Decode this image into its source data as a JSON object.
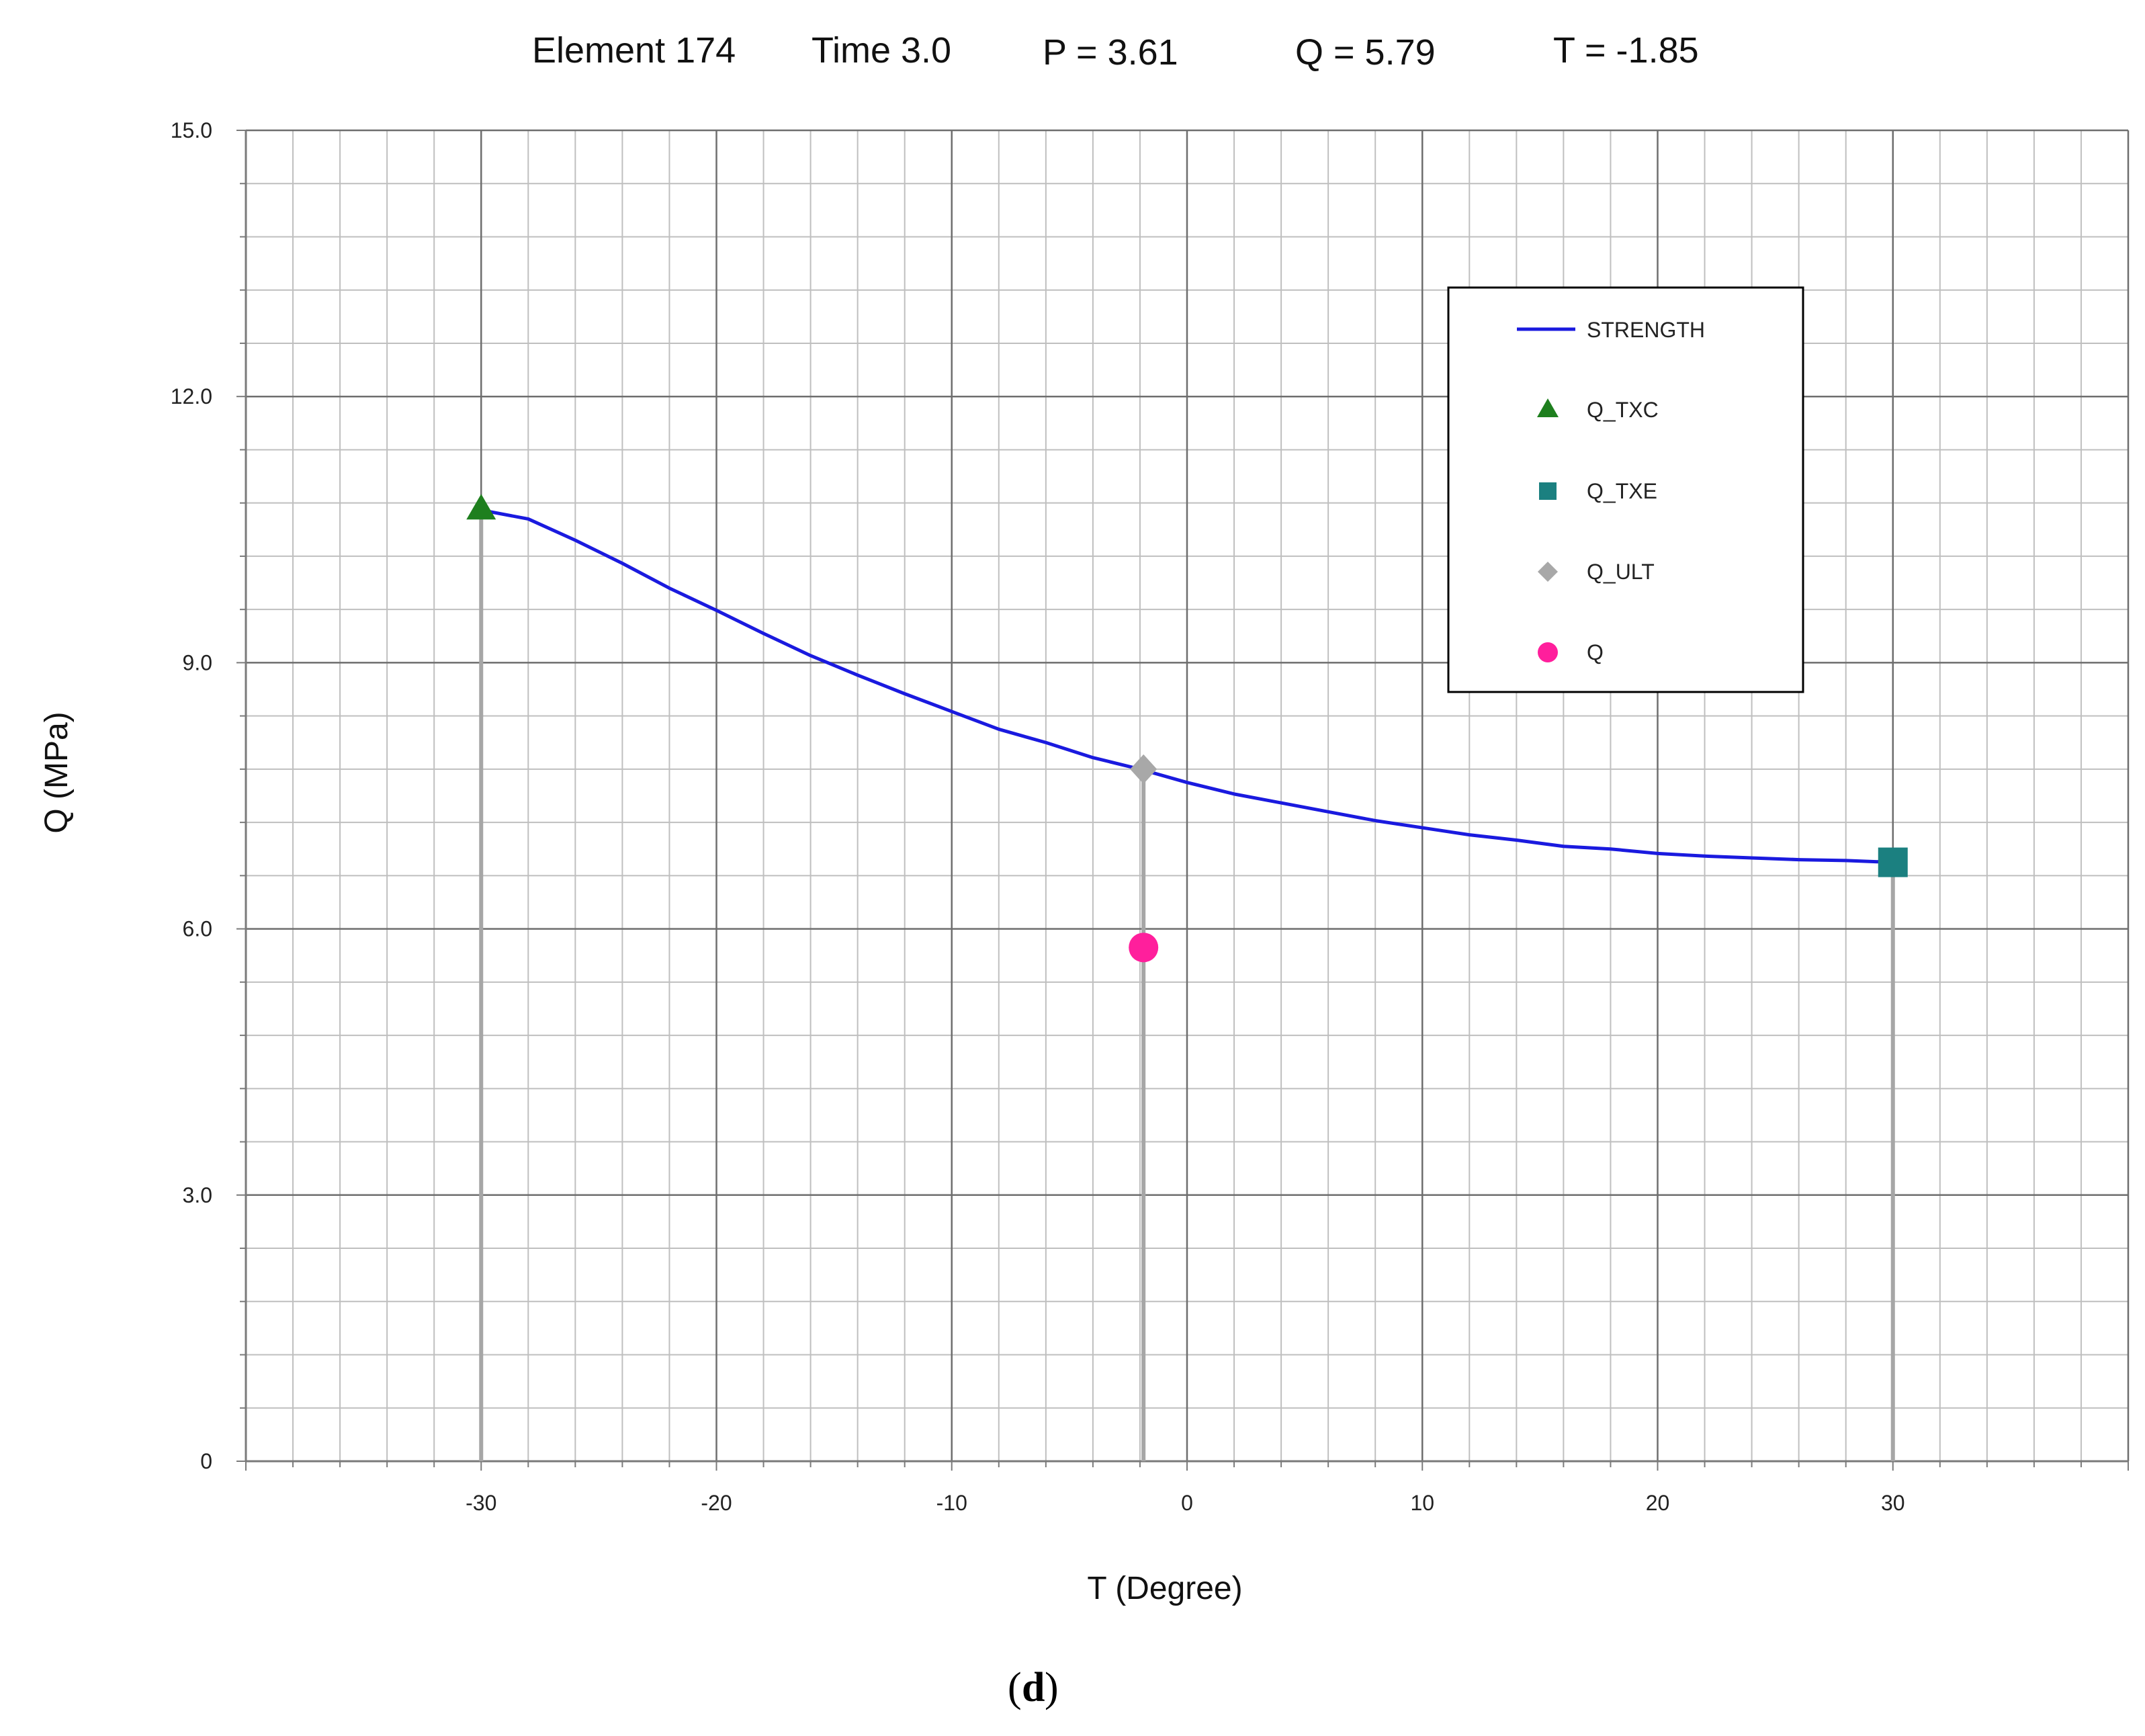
{
  "header": {
    "element": "Element  174",
    "time": "Time  3.0",
    "p": "P =  3.61",
    "q": "Q =  5.79",
    "t": "T = -1.85"
  },
  "caption": {
    "open": "(",
    "letter": "d",
    "close": ")"
  },
  "chart_data": {
    "type": "line",
    "xlabel": "T (Degree)",
    "ylabel": "Q  (MPa)",
    "xlim": [
      -40,
      40
    ],
    "ylim": [
      0,
      15
    ],
    "x_ticks": [
      -30,
      -20,
      -10,
      0,
      10,
      20,
      30
    ],
    "x_tick_labels": [
      "-30",
      "-20",
      "-10",
      "0",
      "10",
      "20",
      "30"
    ],
    "y_ticks": [
      0,
      3,
      6,
      9,
      12,
      15
    ],
    "y_tick_labels": [
      "0",
      "3.0",
      "6.0",
      "9.0",
      "12.0",
      "15.0"
    ],
    "grid": true,
    "legend_position": "top-right",
    "series": [
      {
        "name": "STRENGTH",
        "kind": "line",
        "color": "#1a1adf",
        "x": [
          -30,
          -28,
          -26,
          -24,
          -22,
          -20,
          -18,
          -16,
          -14,
          -12,
          -10,
          -8,
          -6,
          -4,
          -2,
          0,
          2,
          4,
          6,
          8,
          10,
          12,
          14,
          16,
          18,
          20,
          22,
          24,
          26,
          28,
          30
        ],
        "y": [
          10.72,
          10.62,
          10.38,
          10.12,
          9.84,
          9.59,
          9.33,
          9.08,
          8.86,
          8.65,
          8.45,
          8.25,
          8.1,
          7.93,
          7.8,
          7.65,
          7.52,
          7.42,
          7.32,
          7.22,
          7.14,
          7.06,
          7.0,
          6.93,
          6.9,
          6.85,
          6.82,
          6.8,
          6.78,
          6.77,
          6.75
        ]
      },
      {
        "name": "Q_TXC",
        "kind": "marker",
        "marker": "triangle",
        "color": "#1e7f1e",
        "x": [
          -30
        ],
        "y": [
          10.72
        ]
      },
      {
        "name": "Q_TXE",
        "kind": "marker",
        "marker": "square",
        "color": "#1b8080",
        "x": [
          30
        ],
        "y": [
          6.75
        ]
      },
      {
        "name": "Q_ULT",
        "kind": "marker",
        "marker": "diamond",
        "color": "#a8a8a8",
        "x": [
          -1.85
        ],
        "y": [
          7.8
        ]
      },
      {
        "name": "Q",
        "kind": "marker",
        "marker": "circle",
        "color": "#ff1f9c",
        "x": [
          -1.85
        ],
        "y": [
          5.79
        ]
      }
    ],
    "drop_lines": {
      "color": "#a6a6a6",
      "x": [
        -30,
        -1.85,
        30
      ]
    }
  }
}
